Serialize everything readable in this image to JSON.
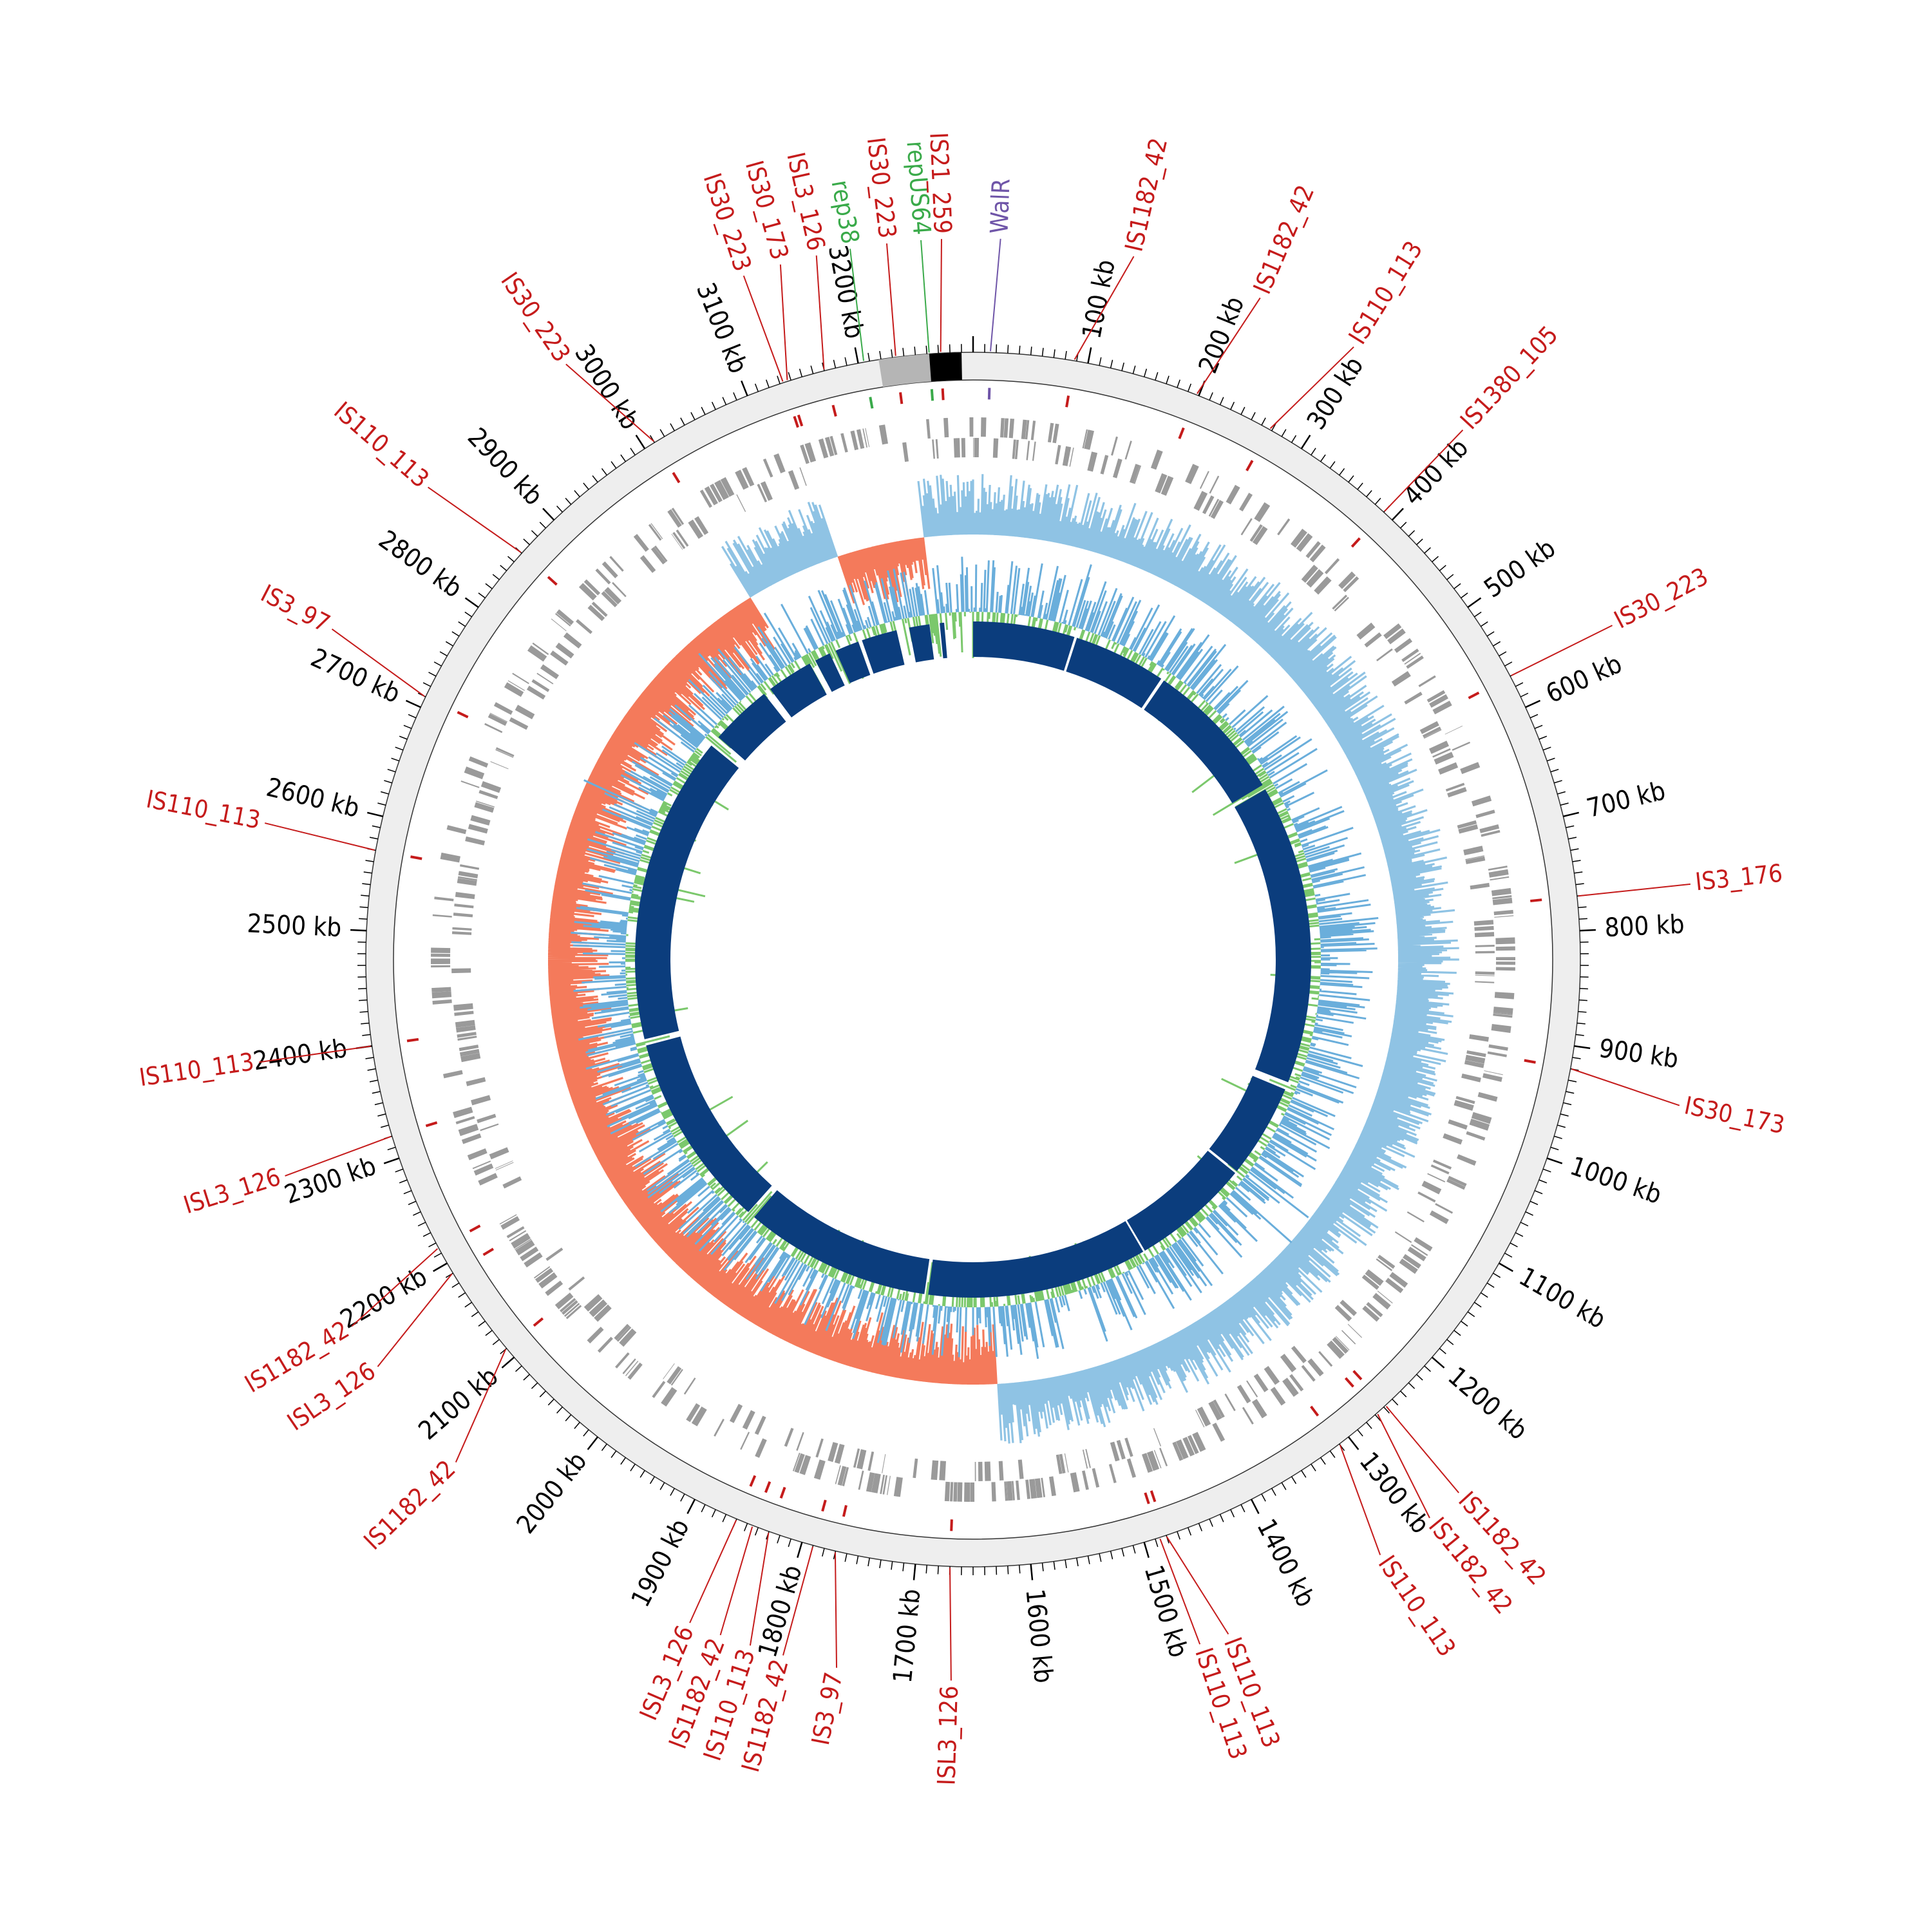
{
  "chart_data": {
    "type": "circular-genome-map",
    "genome_size_kb": 3300,
    "tick_labels": [
      "100 kb",
      "200 kb",
      "300 kb",
      "400 kb",
      "500 kb",
      "600 kb",
      "700 kb",
      "800 kb",
      "900 kb",
      "1000 kb",
      "1100 kb",
      "1200 kb",
      "1300 kb",
      "1400 kb",
      "1500 kb",
      "1600 kb",
      "1700 kb",
      "1800 kb",
      "1900 kb",
      "2000 kb",
      "2100 kb",
      "2200 kb",
      "2300 kb",
      "2400 kb",
      "2500 kb",
      "2600 kb",
      "2700 kb",
      "2800 kb",
      "2900 kb",
      "3000 kb",
      "3100 kb",
      "3200 kb"
    ],
    "tick_positions_kb": [
      100,
      200,
      300,
      400,
      500,
      600,
      700,
      800,
      900,
      1000,
      1100,
      1200,
      1300,
      1400,
      1500,
      1600,
      1700,
      1800,
      1900,
      2000,
      2100,
      2200,
      2300,
      2400,
      2500,
      2600,
      2700,
      2800,
      2900,
      3000,
      3100,
      3200
    ],
    "annotations": [
      {
        "label": "IS1182_42",
        "position_kb": 88,
        "label_position_kb": 118,
        "type": "IS"
      },
      {
        "label": "IS1182_42",
        "position_kb": 198,
        "label_position_kb": 215,
        "type": "IS"
      },
      {
        "label": "IS110_113",
        "position_kb": 268,
        "label_position_kb": 292,
        "type": "IS"
      },
      {
        "label": "IS1380_105",
        "position_kb": 390,
        "label_position_kb": 392,
        "type": "IS"
      },
      {
        "label": "IS30_223",
        "position_kb": 570,
        "label_position_kb": 572,
        "type": "IS"
      },
      {
        "label": "IS3_176",
        "position_kb": 770,
        "label_position_kb": 770,
        "type": "IS"
      },
      {
        "label": "IS30_173",
        "position_kb": 920,
        "label_position_kb": 932,
        "type": "IS"
      },
      {
        "label": "IS1182_42",
        "position_kb": 1258,
        "label_position_kb": 1262,
        "type": "IS"
      },
      {
        "label": "IS1182_42",
        "position_kb": 1268,
        "label_position_kb": 1290,
        "type": "IS"
      },
      {
        "label": "IS110_113",
        "position_kb": 1310,
        "label_position_kb": 1335,
        "type": "IS"
      },
      {
        "label": "IS110_113",
        "position_kb": 1480,
        "label_position_kb": 1460,
        "type": "IS"
      },
      {
        "label": "IS110_113",
        "position_kb": 1486,
        "label_position_kb": 1482,
        "type": "IS"
      },
      {
        "label": "ISL3_126",
        "position_kb": 1670,
        "label_position_kb": 1666,
        "type": "IS"
      },
      {
        "label": "IS3_97",
        "position_kb": 1770,
        "label_position_kb": 1750,
        "type": "IS"
      },
      {
        "label": "IS1182_42",
        "position_kb": 1790,
        "label_position_kb": 1790,
        "type": "IS"
      },
      {
        "label": "IS110_113",
        "position_kb": 1830,
        "label_position_kb": 1815,
        "type": "IS"
      },
      {
        "label": "IS1182_42",
        "position_kb": 1845,
        "label_position_kb": 1838,
        "type": "IS"
      },
      {
        "label": "ISL3_126",
        "position_kb": 1860,
        "label_position_kb": 1862,
        "type": "IS"
      },
      {
        "label": "IS1182_42",
        "position_kb": 2110,
        "label_position_kb": 2070,
        "type": "IS"
      },
      {
        "label": "ISL3_126",
        "position_kb": 2190,
        "label_position_kb": 2160,
        "type": "IS"
      },
      {
        "label": "IS1182_42",
        "position_kb": 2215,
        "label_position_kb": 2195,
        "type": "IS"
      },
      {
        "label": "ISL3_126",
        "position_kb": 2320,
        "label_position_kb": 2315,
        "type": "IS"
      },
      {
        "label": "IS110_113",
        "position_kb": 2400,
        "label_position_kb": 2400,
        "type": "IS"
      },
      {
        "label": "IS110_113",
        "position_kb": 2570,
        "label_position_kb": 2575,
        "type": "IS"
      },
      {
        "label": "IS3_97",
        "position_kb": 2710,
        "label_position_kb": 2725,
        "type": "IS"
      },
      {
        "label": "IS110_113",
        "position_kb": 2860,
        "label_position_kb": 2850,
        "type": "IS"
      },
      {
        "label": "IS30_223",
        "position_kb": 3010,
        "label_position_kb": 2985,
        "type": "IS"
      },
      {
        "label": "IS30_223",
        "position_kb": 3133,
        "label_position_kb": 3130,
        "type": "IS"
      },
      {
        "label": "IS30_173",
        "position_kb": 3137,
        "label_position_kb": 3158,
        "type": "IS"
      },
      {
        "label": "ISL3_126",
        "position_kb": 3170,
        "label_position_kb": 3185,
        "type": "IS"
      },
      {
        "label": "rep38",
        "position_kb": 3205,
        "label_position_kb": 3210,
        "type": "rep"
      },
      {
        "label": "IS30_223",
        "position_kb": 3233,
        "label_position_kb": 3237,
        "type": "IS"
      },
      {
        "label": "repUS64",
        "position_kb": 3262,
        "label_position_kb": 3262,
        "type": "rep"
      },
      {
        "label": "IS21_259",
        "position_kb": 3272,
        "label_position_kb": 3277,
        "type": "IS"
      },
      {
        "label": "WalR",
        "position_kb": 15,
        "label_position_kb": 20,
        "type": "gene"
      }
    ],
    "tracks": [
      {
        "name": "backbone",
        "color": "#eeeeee"
      },
      {
        "name": "IS elements",
        "color": "#cc1f1f"
      },
      {
        "name": "CDS",
        "color": "#999999"
      },
      {
        "name": "GC skew",
        "colors": {
          "positive": "#8fc3e4",
          "negative": "#f47a5b"
        }
      },
      {
        "name": "GC content",
        "colors": {
          "above": "#6aaedb",
          "below": "#7bc86c"
        }
      },
      {
        "name": "BLAST identity",
        "color": "#0b3d7d"
      }
    ],
    "colors": {
      "is_label": "#c51b1b",
      "rep_label": "#3aaa4a",
      "gene_label": "#6f55a8",
      "tick_text": "#000000"
    }
  }
}
